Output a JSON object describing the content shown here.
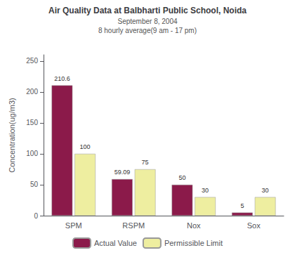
{
  "chart_data": {
    "type": "bar",
    "title": "Air Quality Data at Balbharti Public School, Noida",
    "subtitle": "September 8, 2004\n8 hourly average(9 am - 17 pm)",
    "categories": [
      "SPM",
      "RSPM",
      "Nox",
      "Sox"
    ],
    "series": [
      {
        "name": "Actual Value",
        "color": "#8B1A4A",
        "values": [
          210.6,
          59.09,
          50,
          5
        ]
      },
      {
        "name": "Permissible Limit",
        "color": "#EEEEA0",
        "values": [
          100,
          75,
          30,
          30
        ]
      }
    ],
    "ylabel": "Concentration(ug/m3)",
    "ylim": [
      0,
      260
    ],
    "yticks": [
      0,
      50,
      100,
      150,
      200,
      250
    ],
    "grid": false,
    "legend": "bottom",
    "data_labels": true
  }
}
